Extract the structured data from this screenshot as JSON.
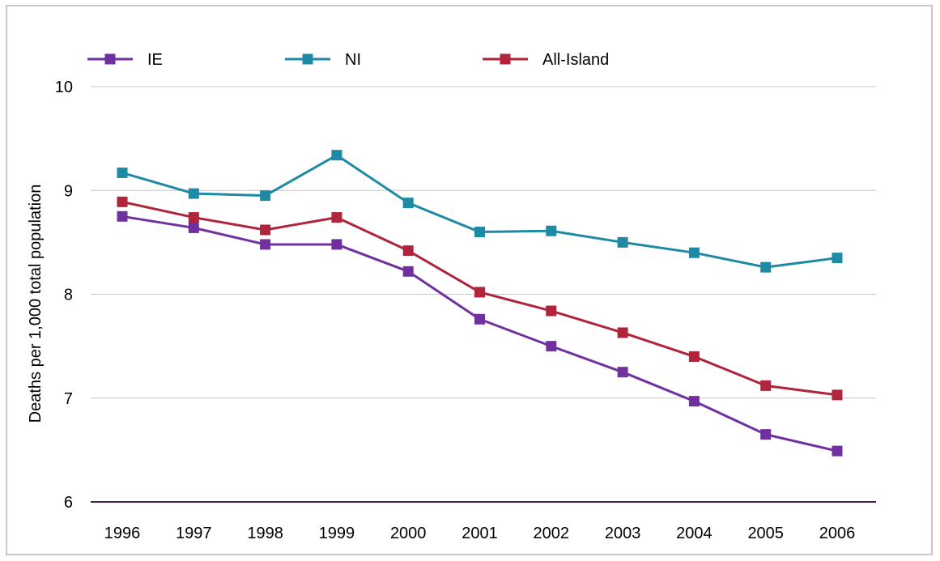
{
  "chart_data": {
    "type": "line",
    "categories": [
      "1996",
      "1997",
      "1998",
      "1999",
      "2000",
      "2001",
      "2002",
      "2003",
      "2004",
      "2005",
      "2006"
    ],
    "series": [
      {
        "name": "IE",
        "color": "#7030a0",
        "values": [
          8.75,
          8.64,
          8.48,
          8.48,
          8.22,
          7.76,
          7.5,
          7.25,
          6.97,
          6.65,
          6.49
        ]
      },
      {
        "name": "NI",
        "color": "#1f8aa6",
        "values": [
          9.17,
          8.97,
          8.95,
          9.34,
          8.88,
          8.6,
          8.61,
          8.5,
          8.4,
          8.26,
          8.35
        ]
      },
      {
        "name": "All-Island",
        "color": "#b0243c",
        "values": [
          8.89,
          8.74,
          8.62,
          8.74,
          8.42,
          8.02,
          7.84,
          7.63,
          7.4,
          7.12,
          7.03
        ]
      }
    ],
    "title": "",
    "xlabel": "",
    "ylabel": "Deaths per 1,000 total population",
    "ylim": [
      6,
      10
    ],
    "yticks": [
      "6",
      "7",
      "8",
      "9",
      "10"
    ],
    "grid": true,
    "legend_position": "top"
  }
}
